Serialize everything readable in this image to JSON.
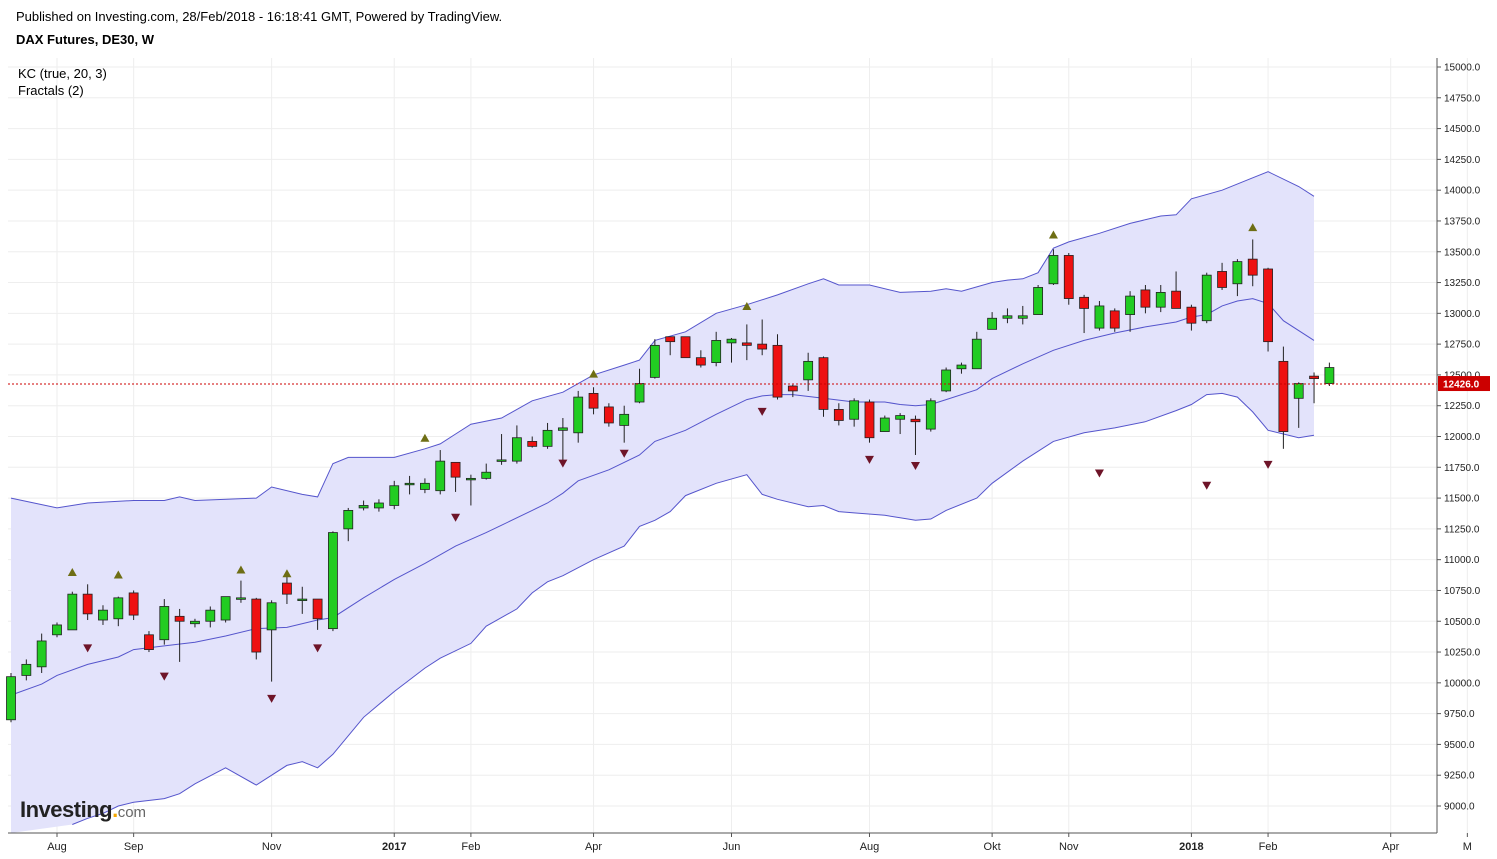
{
  "header": {
    "published": "Published on Investing.com, 28/Feb/2018 - 16:18:41 GMT, Powered by TradingView.",
    "symbol": "DAX Futures, DE30, W"
  },
  "indicators": [
    "KC (true, 20, 3)",
    "Fractals (2)"
  ],
  "logo": {
    "brand": "Investing",
    "dot": ".",
    "suffix": "com"
  },
  "colors": {
    "up": "#22cc22",
    "down": "#ee1111",
    "band_line": "#5555cc",
    "band_fill": "#e3e3fb",
    "fractal_up": "#6e6e14",
    "fractal_down": "#6e1428",
    "price_line": "#cc0000"
  },
  "chart_data": {
    "type": "candlestick",
    "title": "DAX Futures, DE30, W",
    "ylim": [
      8850,
      15100
    ],
    "y_ticks": [
      "15000.0",
      "14750.0",
      "14500.0",
      "14250.0",
      "14000.0",
      "13750.0",
      "13500.0",
      "13250.0",
      "13000.0",
      "12750.0",
      "12500.0",
      "12250.0",
      "12000.0",
      "11750.0",
      "11500.0",
      "11250.0",
      "11000.0",
      "10750.0",
      "10500.0",
      "10250.0",
      "10000.0",
      "9750.0",
      "9500.0",
      "9250.0",
      "9000.0"
    ],
    "x_labels": [
      {
        "label": "Aug",
        "index": 3,
        "bold": false
      },
      {
        "label": "Sep",
        "index": 8,
        "bold": false
      },
      {
        "label": "Nov",
        "index": 17,
        "bold": false
      },
      {
        "label": "2017",
        "index": 25,
        "bold": true
      },
      {
        "label": "Feb",
        "index": 30,
        "bold": false
      },
      {
        "label": "Apr",
        "index": 38,
        "bold": false
      },
      {
        "label": "Jun",
        "index": 47,
        "bold": false
      },
      {
        "label": "Aug",
        "index": 56,
        "bold": false
      },
      {
        "label": "Okt",
        "index": 64,
        "bold": false
      },
      {
        "label": "Nov",
        "index": 69,
        "bold": false
      },
      {
        "label": "2018",
        "index": 77,
        "bold": true
      },
      {
        "label": "Feb",
        "index": 82,
        "bold": false
      },
      {
        "label": "Apr",
        "index": 90,
        "bold": false
      },
      {
        "label": "M",
        "index": 95,
        "bold": false
      }
    ],
    "last_price": 12426.0,
    "last_price_label": "12426.0",
    "candles": [
      [
        9700,
        10050,
        9680,
        10080
      ],
      [
        10060,
        10150,
        10020,
        10190
      ],
      [
        10130,
        10340,
        10080,
        10400
      ],
      [
        10390,
        10470,
        10370,
        10490
      ],
      [
        10430,
        10720,
        10430,
        10740
      ],
      [
        10720,
        10560,
        10510,
        10800
      ],
      [
        10510,
        10590,
        10470,
        10630
      ],
      [
        10520,
        10690,
        10460,
        10700
      ],
      [
        10730,
        10550,
        10510,
        10750
      ],
      [
        10390,
        10270,
        10250,
        10420
      ],
      [
        10350,
        10620,
        10310,
        10680
      ],
      [
        10540,
        10500,
        10170,
        10600
      ],
      [
        10480,
        10500,
        10450,
        10520
      ],
      [
        10500,
        10590,
        10450,
        10620
      ],
      [
        10510,
        10700,
        10490,
        10700
      ],
      [
        10680,
        10690,
        10650,
        10830
      ],
      [
        10680,
        10250,
        10190,
        10690
      ],
      [
        10430,
        10650,
        10010,
        10670
      ],
      [
        10810,
        10720,
        10640,
        10880
      ],
      [
        10680,
        10680,
        10560,
        10780
      ],
      [
        10680,
        10520,
        10430,
        10680
      ],
      [
        10440,
        11220,
        10420,
        11230
      ],
      [
        11250,
        11400,
        11150,
        11420
      ],
      [
        11420,
        11440,
        11400,
        11480
      ],
      [
        11420,
        11460,
        11390,
        11490
      ],
      [
        11440,
        11600,
        11410,
        11640
      ],
      [
        11620,
        11620,
        11530,
        11680
      ],
      [
        11570,
        11620,
        11540,
        11660
      ],
      [
        11560,
        11800,
        11530,
        11890
      ],
      [
        11790,
        11670,
        11550,
        11790
      ],
      [
        11650,
        11660,
        11440,
        11690
      ],
      [
        11660,
        11710,
        11650,
        11780
      ],
      [
        11800,
        11810,
        11770,
        12020
      ],
      [
        11800,
        11990,
        11780,
        12090
      ],
      [
        11960,
        11920,
        11910,
        12000
      ],
      [
        11920,
        12050,
        11900,
        12110
      ],
      [
        12050,
        12070,
        11790,
        12150
      ],
      [
        12030,
        12320,
        11950,
        12370
      ],
      [
        12350,
        12230,
        12180,
        12400
      ],
      [
        12240,
        12110,
        12080,
        12270
      ],
      [
        12090,
        12180,
        11950,
        12250
      ],
      [
        12280,
        12430,
        12270,
        12550
      ],
      [
        12480,
        12740,
        12470,
        12790
      ],
      [
        12810,
        12770,
        12660,
        12810
      ],
      [
        12810,
        12640,
        12660,
        12810
      ],
      [
        12640,
        12580,
        12560,
        12700
      ],
      [
        12600,
        12780,
        12570,
        12850
      ],
      [
        12760,
        12790,
        12600,
        12800
      ],
      [
        12760,
        12740,
        12620,
        12910
      ],
      [
        12750,
        12710,
        12660,
        12950
      ],
      [
        12740,
        12320,
        12300,
        12830
      ],
      [
        12410,
        12370,
        12320,
        12420
      ],
      [
        12460,
        12610,
        12370,
        12680
      ],
      [
        12640,
        12220,
        12160,
        12650
      ],
      [
        12220,
        12130,
        12090,
        12270
      ],
      [
        12140,
        12290,
        12080,
        12310
      ],
      [
        12280,
        11990,
        11950,
        12300
      ],
      [
        12040,
        12150,
        12040,
        12170
      ],
      [
        12140,
        12170,
        12020,
        12190
      ],
      [
        12140,
        12120,
        11850,
        12170
      ],
      [
        12060,
        12290,
        12040,
        12310
      ],
      [
        12370,
        12540,
        12360,
        12560
      ],
      [
        12550,
        12580,
        12510,
        12600
      ],
      [
        12550,
        12790,
        12550,
        12850
      ],
      [
        12870,
        12960,
        12870,
        13010
      ],
      [
        12960,
        12980,
        12920,
        13040
      ],
      [
        12960,
        12980,
        12910,
        13060
      ],
      [
        12990,
        13210,
        12990,
        13230
      ],
      [
        13240,
        13470,
        13230,
        13520
      ],
      [
        13470,
        13120,
        13070,
        13490
      ],
      [
        13130,
        13040,
        12840,
        13150
      ],
      [
        12880,
        13060,
        12860,
        13100
      ],
      [
        13020,
        12880,
        12850,
        13040
      ],
      [
        12990,
        13140,
        12850,
        13180
      ],
      [
        13190,
        13050,
        13000,
        13230
      ],
      [
        13050,
        13170,
        13010,
        13230
      ],
      [
        13180,
        13040,
        13040,
        13340
      ],
      [
        13050,
        12920,
        12860,
        13070
      ],
      [
        12940,
        13310,
        12920,
        13330
      ],
      [
        13340,
        13210,
        13190,
        13410
      ],
      [
        13240,
        13420,
        13140,
        13440
      ],
      [
        13440,
        13310,
        13220,
        13600
      ],
      [
        13360,
        12770,
        12690,
        13370
      ],
      [
        12610,
        12040,
        11900,
        12730
      ],
      [
        12310,
        12430,
        12070,
        12440
      ],
      [
        12490,
        12470,
        12270,
        12520
      ],
      [
        12430,
        12560,
        12410,
        12600
      ]
    ],
    "keltner_upper": [
      [
        0,
        11500
      ],
      [
        3,
        11420
      ],
      [
        5,
        11460
      ],
      [
        8,
        11480
      ],
      [
        10,
        11480
      ],
      [
        11,
        11510
      ],
      [
        12,
        11480
      ],
      [
        16,
        11500
      ],
      [
        17,
        11590
      ],
      [
        19,
        11530
      ],
      [
        20,
        11510
      ],
      [
        21,
        11780
      ],
      [
        22,
        11830
      ],
      [
        24,
        11830
      ],
      [
        25,
        11830
      ],
      [
        27,
        11900
      ],
      [
        28,
        11940
      ],
      [
        29,
        12020
      ],
      [
        30,
        12100
      ],
      [
        32,
        12150
      ],
      [
        33,
        12220
      ],
      [
        34,
        12290
      ],
      [
        36,
        12360
      ],
      [
        38,
        12500
      ],
      [
        40,
        12580
      ],
      [
        41,
        12620
      ],
      [
        42,
        12780
      ],
      [
        44,
        12850
      ],
      [
        46,
        13000
      ],
      [
        48,
        13070
      ],
      [
        50,
        13150
      ],
      [
        52,
        13240
      ],
      [
        53,
        13280
      ],
      [
        54,
        13230
      ],
      [
        56,
        13230
      ],
      [
        58,
        13170
      ],
      [
        60,
        13180
      ],
      [
        61,
        13200
      ],
      [
        62,
        13180
      ],
      [
        64,
        13250
      ],
      [
        65,
        13270
      ],
      [
        66,
        13280
      ],
      [
        67,
        13330
      ],
      [
        68,
        13530
      ],
      [
        69,
        13580
      ],
      [
        71,
        13650
      ],
      [
        73,
        13730
      ],
      [
        75,
        13790
      ],
      [
        76,
        13800
      ],
      [
        77,
        13930
      ],
      [
        79,
        14000
      ],
      [
        81,
        14100
      ],
      [
        82,
        14150
      ],
      [
        84,
        14030
      ],
      [
        85,
        13950
      ]
    ],
    "keltner_middle": [
      [
        0,
        9900
      ],
      [
        2,
        9990
      ],
      [
        3,
        10060
      ],
      [
        5,
        10150
      ],
      [
        7,
        10210
      ],
      [
        8,
        10270
      ],
      [
        10,
        10300
      ],
      [
        12,
        10330
      ],
      [
        14,
        10380
      ],
      [
        16,
        10440
      ],
      [
        18,
        10450
      ],
      [
        20,
        10510
      ],
      [
        21,
        10530
      ],
      [
        23,
        10690
      ],
      [
        25,
        10840
      ],
      [
        27,
        10970
      ],
      [
        29,
        11110
      ],
      [
        31,
        11220
      ],
      [
        32,
        11280
      ],
      [
        34,
        11400
      ],
      [
        35,
        11460
      ],
      [
        36,
        11540
      ],
      [
        37,
        11640
      ],
      [
        39,
        11730
      ],
      [
        41,
        11850
      ],
      [
        42,
        11960
      ],
      [
        44,
        12050
      ],
      [
        46,
        12180
      ],
      [
        48,
        12300
      ],
      [
        49,
        12330
      ],
      [
        50,
        12340
      ],
      [
        51,
        12340
      ],
      [
        53,
        12310
      ],
      [
        55,
        12280
      ],
      [
        57,
        12280
      ],
      [
        58,
        12260
      ],
      [
        59,
        12250
      ],
      [
        60,
        12260
      ],
      [
        61,
        12300
      ],
      [
        63,
        12380
      ],
      [
        64,
        12470
      ],
      [
        66,
        12590
      ],
      [
        68,
        12700
      ],
      [
        70,
        12780
      ],
      [
        72,
        12840
      ],
      [
        74,
        12890
      ],
      [
        76,
        12930
      ],
      [
        77,
        12970
      ],
      [
        78,
        12990
      ],
      [
        79,
        13060
      ],
      [
        80,
        13100
      ],
      [
        81,
        13120
      ],
      [
        82,
        13080
      ],
      [
        83,
        12940
      ],
      [
        85,
        12780
      ]
    ],
    "keltner_lower": [
      [
        4,
        8850
      ],
      [
        5,
        8900
      ],
      [
        6,
        8940
      ],
      [
        7,
        9000
      ],
      [
        8,
        9030
      ],
      [
        10,
        9060
      ],
      [
        11,
        9100
      ],
      [
        12,
        9180
      ],
      [
        14,
        9310
      ],
      [
        16,
        9170
      ],
      [
        18,
        9330
      ],
      [
        19,
        9360
      ],
      [
        20,
        9310
      ],
      [
        21,
        9420
      ],
      [
        23,
        9720
      ],
      [
        25,
        9930
      ],
      [
        27,
        10120
      ],
      [
        28,
        10200
      ],
      [
        30,
        10320
      ],
      [
        31,
        10460
      ],
      [
        33,
        10600
      ],
      [
        34,
        10730
      ],
      [
        35,
        10820
      ],
      [
        36,
        10870
      ],
      [
        38,
        11000
      ],
      [
        40,
        11110
      ],
      [
        41,
        11270
      ],
      [
        42,
        11320
      ],
      [
        43,
        11390
      ],
      [
        44,
        11520
      ],
      [
        46,
        11620
      ],
      [
        48,
        11690
      ],
      [
        49,
        11530
      ],
      [
        50,
        11490
      ],
      [
        52,
        11430
      ],
      [
        53,
        11440
      ],
      [
        54,
        11390
      ],
      [
        55,
        11380
      ],
      [
        57,
        11360
      ],
      [
        58,
        11340
      ],
      [
        59,
        11320
      ],
      [
        60,
        11330
      ],
      [
        61,
        11400
      ],
      [
        63,
        11500
      ],
      [
        64,
        11620
      ],
      [
        66,
        11800
      ],
      [
        68,
        11960
      ],
      [
        70,
        12030
      ],
      [
        72,
        12070
      ],
      [
        74,
        12120
      ],
      [
        76,
        12210
      ],
      [
        77,
        12260
      ],
      [
        78,
        12340
      ],
      [
        79,
        12350
      ],
      [
        80,
        12320
      ],
      [
        81,
        12200
      ],
      [
        82,
        12050
      ],
      [
        84,
        11990
      ],
      [
        85,
        12010
      ]
    ],
    "fractals_up": [
      [
        4,
        10900
      ],
      [
        7,
        10880
      ],
      [
        15,
        10920
      ],
      [
        18,
        10890
      ],
      [
        27,
        11990
      ],
      [
        38,
        12510
      ],
      [
        48,
        13060
      ],
      [
        68,
        13640
      ],
      [
        81,
        13700
      ]
    ],
    "fractals_down": [
      [
        5,
        10280
      ],
      [
        10,
        10050
      ],
      [
        17,
        9870
      ],
      [
        20,
        10280
      ],
      [
        29,
        11340
      ],
      [
        36,
        11780
      ],
      [
        40,
        11860
      ],
      [
        49,
        12200
      ],
      [
        56,
        11810
      ],
      [
        59,
        11760
      ],
      [
        71,
        11700
      ],
      [
        78,
        11600
      ],
      [
        82,
        11770
      ]
    ]
  }
}
